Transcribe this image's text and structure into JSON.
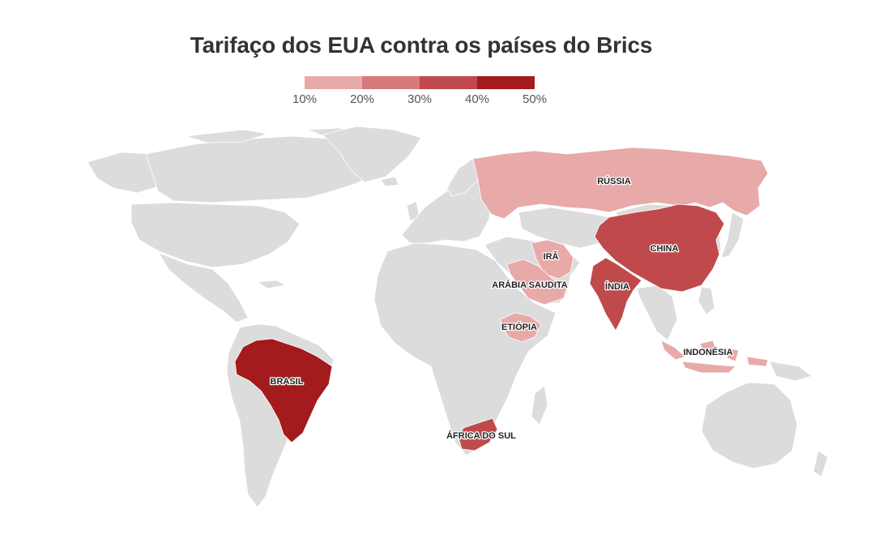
{
  "title": "Tarifaço dos EUA contra os países do Brics",
  "legend": {
    "ticks": [
      "10%",
      "20%",
      "30%",
      "40%",
      "50%"
    ],
    "colors": [
      "#e8a9a9",
      "#d6797a",
      "#c04a4b",
      "#a31b1c"
    ]
  },
  "chart_data": {
    "type": "choropleth",
    "value_unit": "%",
    "bins": [
      10,
      20,
      30,
      40,
      50
    ],
    "countries": [
      {
        "name": "RÚSSIA",
        "value": 10
      },
      {
        "name": "CHINA",
        "value": 30
      },
      {
        "name": "IRÃ",
        "value": 10
      },
      {
        "name": "ARÁBIA SAUDITA",
        "value": 10
      },
      {
        "name": "ÍNDIA",
        "value": 30
      },
      {
        "name": "ETIÓPIA",
        "value": 10
      },
      {
        "name": "INDONÉSIA",
        "value": 10
      },
      {
        "name": "BRASIL",
        "value": 50
      },
      {
        "name": "ÁFRICA DO SUL",
        "value": 30
      }
    ]
  }
}
